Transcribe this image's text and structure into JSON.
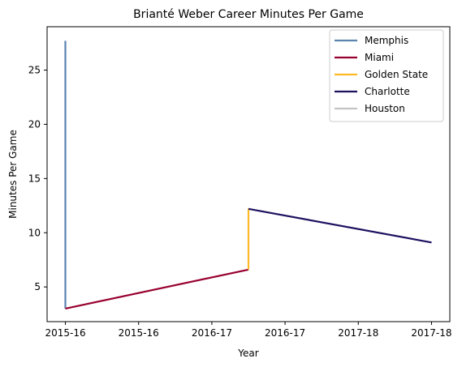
{
  "chart_data": {
    "type": "line",
    "title": "Brianté Weber Career Minutes Per Game",
    "xlabel": "Year",
    "ylabel": "Minutes Per Game",
    "x_tick_labels": [
      "2015-16",
      "2015-16",
      "2016-17",
      "2016-17",
      "2017-18",
      "2017-18"
    ],
    "x_tick_positions": [
      0,
      0.2,
      0.4,
      0.6,
      0.8,
      1.0
    ],
    "xlim": [
      -0.05,
      1.05
    ],
    "ylim": [
      1.8,
      29.0
    ],
    "y_ticks": [
      5,
      10,
      15,
      20,
      25
    ],
    "grid": false,
    "legend_position": "top-right",
    "series": [
      {
        "name": "Memphis",
        "color": "#5b84b1",
        "x": [
          0,
          0
        ],
        "y": [
          27.7,
          3.0
        ]
      },
      {
        "name": "Miami",
        "color": "#98002e",
        "x": [
          0,
          0.5
        ],
        "y": [
          3.0,
          6.6
        ]
      },
      {
        "name": "Golden State",
        "color": "#fdb927",
        "x": [
          0.5,
          0.5
        ],
        "y": [
          6.6,
          12.2
        ]
      },
      {
        "name": "Charlotte",
        "color": "#1d1160",
        "x": [
          0.5,
          1.0
        ],
        "y": [
          12.2,
          9.1
        ]
      },
      {
        "name": "Houston",
        "color": "#c4c4c4",
        "x": [],
        "y": []
      }
    ]
  }
}
